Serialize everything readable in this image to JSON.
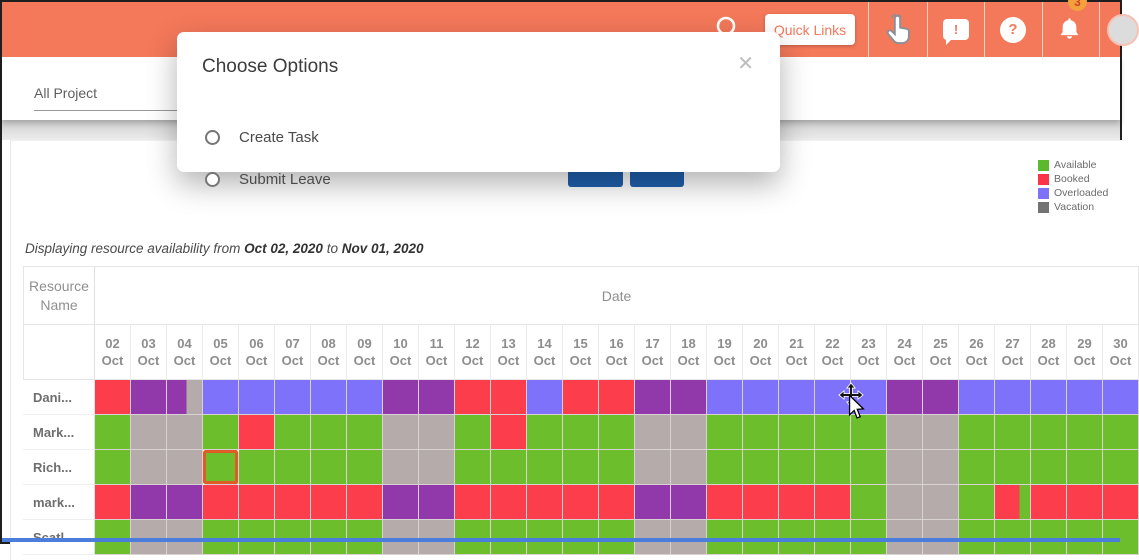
{
  "header": {
    "quick_links_label": "Quick Links",
    "notification_badge": "3",
    "bg_color": "#f4785a",
    "icons": [
      "search-icon",
      "hand-click-icon",
      "feedback-bubble-icon",
      "help-icon",
      "bell-icon",
      "avatar"
    ]
  },
  "filter_bar": {
    "project_filter_value": "All Project"
  },
  "modal": {
    "title": "Choose Options",
    "close_glyph": "✕",
    "options": [
      {
        "label": "Create Task"
      },
      {
        "label": "Submit Leave"
      }
    ]
  },
  "card": {
    "summary": {
      "prefix": "Displaying resource availability from",
      "from_date": "Oct 02, 2020",
      "connector": "to",
      "to_date": "Nov 01, 2020"
    },
    "legend": [
      {
        "label": "Available",
        "color": "#5cb82c"
      },
      {
        "label": "Booked",
        "color": "#fb3449"
      },
      {
        "label": "Overloaded",
        "color": "#7e72fa"
      },
      {
        "label": "Vacation",
        "color": "#737373"
      }
    ],
    "table": {
      "resource_header": "Resource Name",
      "date_header": "Date",
      "month_label": "Oct",
      "days": [
        "02",
        "03",
        "04",
        "05",
        "06",
        "07",
        "08",
        "09",
        "10",
        "11",
        "12",
        "13",
        "14",
        "15",
        "16",
        "17",
        "18",
        "19",
        "20",
        "21",
        "22",
        "23",
        "24",
        "25",
        "26",
        "27",
        "28",
        "29",
        "30"
      ],
      "palette": {
        "G": "#6cbe2d",
        "R": "#fc3d4c",
        "B": "#7e72fa",
        "P": "#9138ab",
        "V": "#b5abab"
      },
      "palette_meaning": {
        "G": "available",
        "R": "booked",
        "B": "overloaded",
        "P": "booked-overloaded",
        "V": "vacation"
      },
      "selected_cell": {
        "row_index": 2,
        "day_index": 3
      },
      "rows": [
        {
          "name": "Dani...",
          "cells": [
            "R",
            "P",
            "P|V|55",
            "B",
            "B",
            "B",
            "B",
            "B",
            "P",
            "P",
            "R",
            "R",
            "B",
            "R",
            "R",
            "P",
            "P",
            "B",
            "B",
            "B",
            "B",
            "B",
            "P",
            "P",
            "B",
            "B",
            "B",
            "B",
            "B"
          ]
        },
        {
          "name": "Mark...",
          "cells": [
            "G",
            "V",
            "V",
            "G",
            "R",
            "G",
            "G",
            "G",
            "V",
            "V",
            "G",
            "R",
            "G",
            "G",
            "G",
            "V",
            "V",
            "G",
            "G",
            "G",
            "G",
            "G",
            "V",
            "V",
            "G",
            "G",
            "G",
            "G",
            "G"
          ]
        },
        {
          "name": "Rich...",
          "cells": [
            "G",
            "V",
            "V",
            "G",
            "G",
            "G",
            "G",
            "G",
            "V",
            "V",
            "G",
            "G",
            "G",
            "G",
            "G",
            "V",
            "V",
            "G",
            "G",
            "G",
            "G",
            "G",
            "V",
            "V",
            "G",
            "G",
            "G",
            "G",
            "G"
          ]
        },
        {
          "name": "mark...",
          "cells": [
            "R",
            "P",
            "P",
            "R",
            "R",
            "R",
            "R",
            "R",
            "P",
            "P",
            "R",
            "R",
            "R",
            "R",
            "R",
            "P",
            "P",
            "R",
            "R",
            "R",
            "R",
            "G",
            "V",
            "V",
            "G",
            "R|G|70",
            "R",
            "R",
            "R"
          ]
        },
        {
          "name": "Scatl...",
          "cells": [
            "G",
            "V",
            "V",
            "G",
            "G",
            "G",
            "G",
            "G",
            "V",
            "V",
            "G",
            "G",
            "G",
            "G",
            "G",
            "V",
            "V",
            "G",
            "G",
            "G",
            "G",
            "G",
            "V",
            "V",
            "G",
            "G",
            "G",
            "G",
            "G"
          ]
        }
      ]
    }
  }
}
